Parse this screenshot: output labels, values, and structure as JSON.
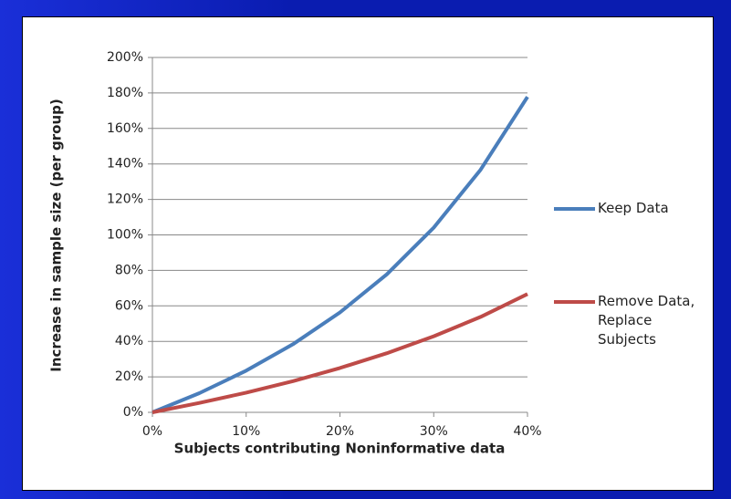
{
  "chart_data": {
    "type": "line",
    "x_label": "Subjects contributing Noninformative data",
    "y_label": "Increase in sample size (per group)",
    "x": [
      0,
      5,
      10,
      15,
      20,
      25,
      30,
      35,
      40
    ],
    "series": [
      {
        "name": "Keep Data",
        "color": "#4a7ebb",
        "values": [
          0,
          10.8,
          23.5,
          38.4,
          56.3,
          77.8,
          104.1,
          136.7,
          177.8
        ]
      },
      {
        "name": "Remove Data, Replace Subjects",
        "color": "#be4b48",
        "values": [
          0,
          5.3,
          11.1,
          17.6,
          25,
          33.3,
          42.9,
          53.8,
          66.7
        ]
      }
    ],
    "xlim": [
      0,
      40
    ],
    "xticks": [
      {
        "value": 0,
        "label": "0%"
      },
      {
        "value": 10,
        "label": "10%"
      },
      {
        "value": 20,
        "label": "20%"
      },
      {
        "value": 30,
        "label": "30%"
      },
      {
        "value": 40,
        "label": "40%"
      }
    ],
    "ylim": [
      0,
      200
    ],
    "yticks": [
      {
        "value": 0,
        "label": "0%"
      },
      {
        "value": 20,
        "label": "20%"
      },
      {
        "value": 40,
        "label": "40%"
      },
      {
        "value": 60,
        "label": "60%"
      },
      {
        "value": 80,
        "label": "80%"
      },
      {
        "value": 100,
        "label": "100%"
      },
      {
        "value": 120,
        "label": "120%"
      },
      {
        "value": 140,
        "label": "140%"
      },
      {
        "value": 160,
        "label": "160%"
      },
      {
        "value": 180,
        "label": "180%"
      },
      {
        "value": 200,
        "label": "200%"
      }
    ],
    "grid": true
  }
}
